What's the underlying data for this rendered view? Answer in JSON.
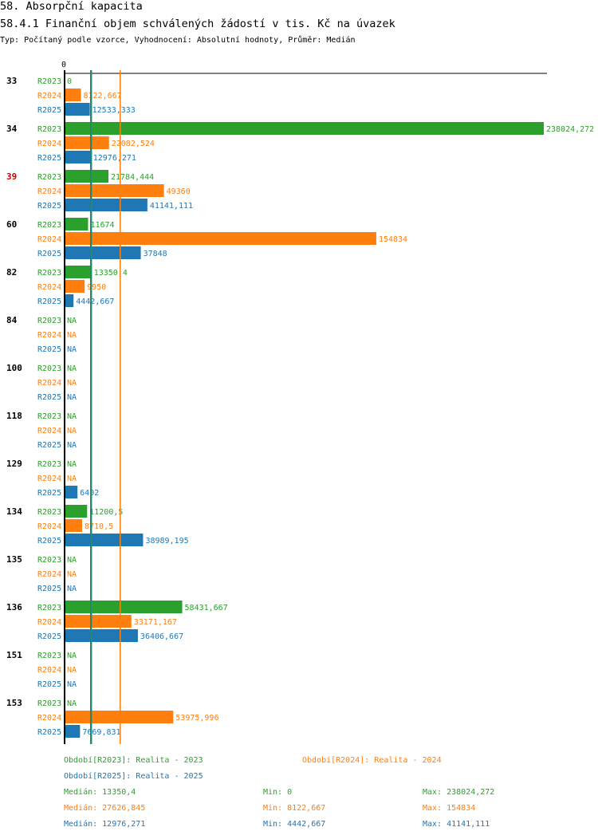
{
  "header": {
    "title": "58. Absorpční kapacita",
    "subtitle": "58.4.1 Finanční objem schválených žádostí v tis. Kč na úvazek",
    "type_line": "Typ: Počítaný podle vzorce, Vyhodnocení: Absolutní hodnoty, Průměr: Medián"
  },
  "colors": {
    "R2023": "#2ca02c",
    "R2024": "#ff7f0e",
    "R2025": "#1f77b4",
    "highlight": "#cc0000",
    "text": "#000000"
  },
  "chart_data": {
    "type": "bar",
    "orientation": "horizontal",
    "axis_zero_label": "0",
    "xlim": [
      0,
      238024.272
    ],
    "series_names": [
      "R2023",
      "R2024",
      "R2025"
    ],
    "categories": [
      "33",
      "34",
      "39",
      "60",
      "82",
      "84",
      "100",
      "118",
      "129",
      "134",
      "135",
      "136",
      "151",
      "153"
    ],
    "highlighted_category": "39",
    "values": {
      "R2023": [
        0,
        238024.272,
        21784.444,
        11674,
        13350.4,
        null,
        null,
        null,
        null,
        11200.5,
        null,
        58431.667,
        null,
        null
      ],
      "R2024": [
        8122.667,
        22082.524,
        49360,
        154834,
        9950,
        null,
        null,
        null,
        null,
        8710.5,
        null,
        33171.167,
        null,
        53975.996
      ],
      "R2025": [
        12533.333,
        12976.271,
        41141.111,
        37848,
        4442.667,
        null,
        null,
        null,
        6402,
        38989.195,
        null,
        36406.667,
        null,
        7669.831
      ]
    },
    "value_labels": {
      "R2023": [
        "0",
        "238024,272",
        "21784,444",
        "11674",
        "13350,4",
        "NA",
        "NA",
        "NA",
        "NA",
        "11200,5",
        "NA",
        "58431,667",
        "NA",
        "NA"
      ],
      "R2024": [
        "8122,667",
        "22082,524",
        "49360",
        "154834",
        "9950",
        "NA",
        "NA",
        "NA",
        "NA",
        "8710,5",
        "NA",
        "33171,167",
        "NA",
        "53975,996"
      ],
      "R2025": [
        "12533,333",
        "12976,271",
        "41141,111",
        "37848",
        "4442,667",
        "NA",
        "NA",
        "NA",
        "6402",
        "38989,195",
        "NA",
        "36406,667",
        "NA",
        "7669,831"
      ]
    },
    "median_lines": {
      "R2023": 13350.4,
      "R2024": 27626.845,
      "R2025": 12976.271
    },
    "legend": [
      {
        "series": "R2023",
        "text": "Období[R2023]: Realita - 2023"
      },
      {
        "series": "R2024",
        "text": "Období[R2024]: Realita - 2024"
      },
      {
        "series": "R2025",
        "text": "Období[R2025]: Realita - 2025"
      }
    ],
    "stats": [
      {
        "series": "R2023",
        "median": "Medián: 13350,4",
        "min": "Min: 0",
        "max": "Max: 238024,272"
      },
      {
        "series": "R2024",
        "median": "Medián: 27626,845",
        "min": "Min: 8122,667",
        "max": "Max: 154834"
      },
      {
        "series": "R2025",
        "median": "Medián: 12976,271",
        "min": "Min: 4442,667",
        "max": "Max: 41141,111"
      }
    ]
  }
}
